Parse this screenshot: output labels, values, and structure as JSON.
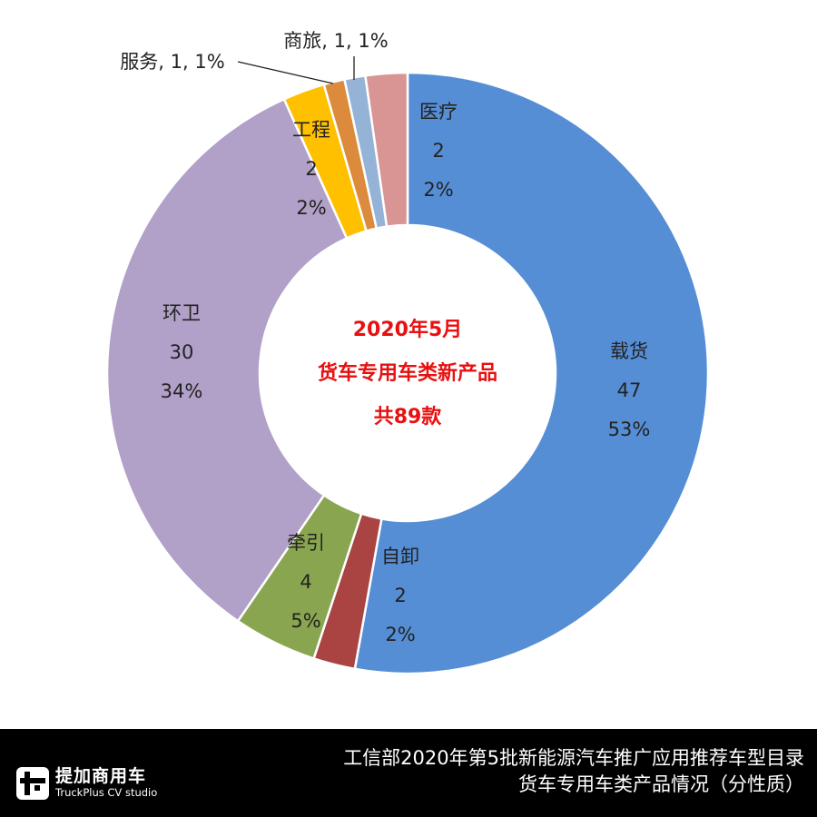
{
  "chart_data": {
    "type": "pie",
    "variant": "donut",
    "center_text": [
      "2020年5月",
      "货车专用车类新产品",
      "共89款"
    ],
    "total": 89,
    "slices": [
      {
        "name": "载货",
        "value": 47,
        "percent": "53%",
        "color": "#558ed5"
      },
      {
        "name": "自卸",
        "value": 2,
        "percent": "2%",
        "color": "#a94443"
      },
      {
        "name": "牵引",
        "value": 4,
        "percent": "5%",
        "color": "#8aa54f"
      },
      {
        "name": "环卫",
        "value": 30,
        "percent": "34%",
        "color": "#b1a0c7"
      },
      {
        "name": "工程",
        "value": 2,
        "percent": "2%",
        "color": "#ffc000"
      },
      {
        "name": "服务",
        "value": 1,
        "percent": "1%",
        "color": "#dc8a3c"
      },
      {
        "name": "商旅",
        "value": 1,
        "percent": "1%",
        "color": "#95b3d7"
      },
      {
        "name": "医疗",
        "value": 2,
        "percent": "2%",
        "color": "#d99594"
      }
    ]
  },
  "footer": {
    "logo_cn": "提加商用车",
    "logo_en": "TruckPlus CV studio",
    "title_line1": "工信部2020年第5批新能源汽车推广应用推荐车型目录",
    "title_line2": "货车专用车类产品情况（分性质）"
  }
}
